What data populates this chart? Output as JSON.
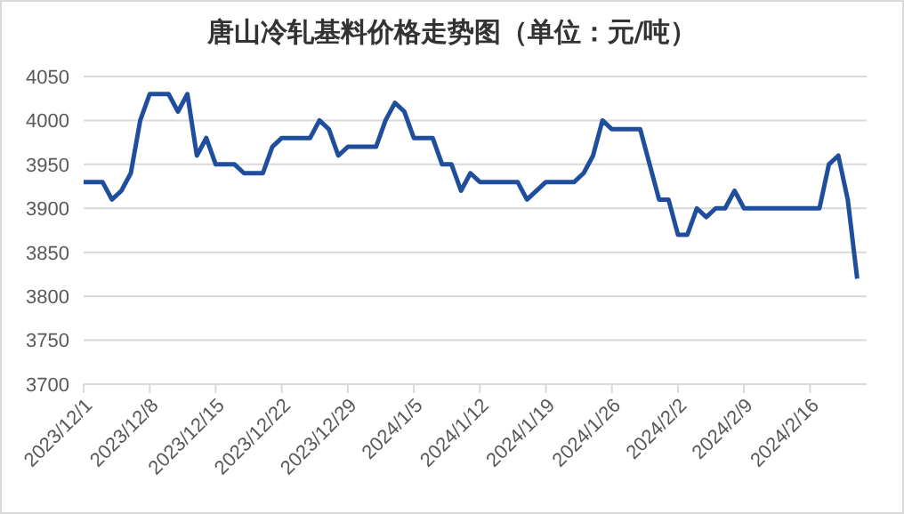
{
  "chart_data": {
    "type": "line",
    "title": "唐山冷轧基料价格走势图（单位：元/吨）",
    "x": [
      "2023-12-01",
      "2023-12-03",
      "2023-12-04",
      "2023-12-05",
      "2023-12-06",
      "2023-12-07",
      "2023-12-08",
      "2023-12-10",
      "2023-12-11",
      "2023-12-12",
      "2023-12-13",
      "2023-12-14",
      "2023-12-15",
      "2023-12-17",
      "2023-12-18",
      "2023-12-20",
      "2023-12-21",
      "2023-12-22",
      "2023-12-25",
      "2023-12-26",
      "2023-12-27",
      "2023-12-28",
      "2023-12-29",
      "2024-01-01",
      "2024-01-02",
      "2024-01-03",
      "2024-01-04",
      "2024-01-05",
      "2024-01-07",
      "2024-01-08",
      "2024-01-09",
      "2024-01-10",
      "2024-01-11",
      "2024-01-12",
      "2024-01-16",
      "2024-01-17",
      "2024-01-19",
      "2024-01-22",
      "2024-01-23",
      "2024-01-24",
      "2024-01-25",
      "2024-01-26",
      "2024-01-29",
      "2024-01-30",
      "2024-01-31",
      "2024-02-01",
      "2024-02-02",
      "2024-02-03",
      "2024-02-04",
      "2024-02-05",
      "2024-02-06",
      "2024-02-07",
      "2024-02-08",
      "2024-02-09",
      "2024-02-17",
      "2024-02-18",
      "2024-02-19",
      "2024-02-20",
      "2024-02-21"
    ],
    "series": [
      {
        "color": "#1f4e9c",
        "values": [
          3930,
          3930,
          3910,
          3920,
          3940,
          4000,
          4030,
          4030,
          4010,
          4030,
          3960,
          3980,
          3950,
          3950,
          3940,
          3940,
          3970,
          3980,
          3980,
          4000,
          3990,
          3960,
          3970,
          3970,
          4000,
          4020,
          4010,
          3980,
          3980,
          3950,
          3950,
          3920,
          3940,
          3930,
          3930,
          3910,
          3930,
          3930,
          3940,
          3960,
          4000,
          3990,
          3990,
          3950,
          3910,
          3910,
          3870,
          3870,
          3900,
          3890,
          3900,
          3900,
          3920,
          3900,
          3900,
          3950,
          3960,
          3910,
          3820
        ]
      }
    ],
    "xlim": [
      "2023-12-01",
      "2024-02-22"
    ],
    "xticks": [
      {
        "value": "2023-12-01",
        "label": "2023/12/1"
      },
      {
        "value": "2023-12-08",
        "label": "2023/12/8"
      },
      {
        "value": "2023-12-15",
        "label": "2023/12/15"
      },
      {
        "value": "2023-12-22",
        "label": "2023/12/22"
      },
      {
        "value": "2023-12-29",
        "label": "2023/12/29"
      },
      {
        "value": "2024-01-05",
        "label": "2024/1/5"
      },
      {
        "value": "2024-01-12",
        "label": "2024/1/12"
      },
      {
        "value": "2024-01-19",
        "label": "2024/1/19"
      },
      {
        "value": "2024-01-26",
        "label": "2024/1/26"
      },
      {
        "value": "2024-02-02",
        "label": "2024/2/2"
      },
      {
        "value": "2024-02-09",
        "label": "2024/2/9"
      },
      {
        "value": "2024-02-16",
        "label": "2024/2/16"
      }
    ],
    "ylim": [
      3700,
      4050
    ],
    "yticks": [
      3700,
      3750,
      3800,
      3850,
      3900,
      3950,
      4000,
      4050
    ],
    "grid": "y",
    "legend": false,
    "marker": "none",
    "line_style": "solid"
  }
}
